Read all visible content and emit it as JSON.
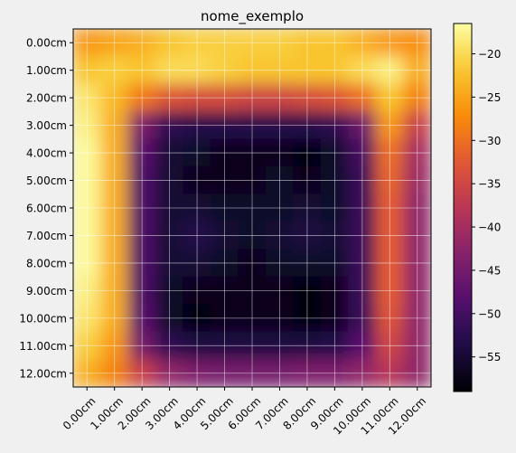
{
  "chart_data": {
    "type": "heatmap",
    "title": "nome_exemplo",
    "xlabel": "",
    "ylabel": "",
    "x_ticks": [
      "0.00cm",
      "1.00cm",
      "2.00cm",
      "3.00cm",
      "4.00cm",
      "5.00cm",
      "6.00cm",
      "7.00cm",
      "8.00cm",
      "9.00cm",
      "10.00cm",
      "11.00cm",
      "12.00cm"
    ],
    "y_ticks": [
      "0.00cm",
      "1.00cm",
      "2.00cm",
      "3.00cm",
      "4.00cm",
      "5.00cm",
      "6.00cm",
      "7.00cm",
      "8.00cm",
      "9.00cm",
      "10.00cm",
      "11.00cm",
      "12.00cm"
    ],
    "grid": true,
    "colormap": "inferno",
    "colorbar": {
      "min": -59,
      "max": -16.5,
      "ticks": [
        -20,
        -25,
        -30,
        -35,
        -40,
        -45,
        -50,
        -55
      ]
    },
    "z": [
      [
        -26,
        -25,
        -24,
        -22,
        -21,
        -21,
        -21,
        -21,
        -22,
        -22,
        -24,
        -26,
        -27
      ],
      [
        -22,
        -21,
        -22,
        -20,
        -20,
        -21,
        -22,
        -22,
        -22,
        -22,
        -20,
        -18,
        -24
      ],
      [
        -19,
        -23,
        -29,
        -33,
        -34,
        -34,
        -35,
        -35,
        -34,
        -33,
        -30,
        -22,
        -28
      ],
      [
        -18,
        -24,
        -44,
        -52,
        -53,
        -53,
        -53,
        -53,
        -53,
        -52,
        -46,
        -26,
        -36
      ],
      [
        -17,
        -24,
        -48,
        -55,
        -56,
        -57,
        -57,
        -57,
        -58,
        -56,
        -50,
        -30,
        -40
      ],
      [
        -17,
        -24,
        -49,
        -55,
        -57,
        -57,
        -57,
        -56,
        -57,
        -56,
        -51,
        -31,
        -41
      ],
      [
        -17,
        -24,
        -49,
        -55,
        -55,
        -56,
        -56,
        -56,
        -55,
        -56,
        -51,
        -32,
        -42
      ],
      [
        -17,
        -24,
        -49,
        -55,
        -53,
        -55,
        -56,
        -55,
        -54,
        -55,
        -51,
        -32,
        -42
      ],
      [
        -17,
        -24,
        -49,
        -55,
        -55,
        -56,
        -57,
        -56,
        -56,
        -56,
        -51,
        -32,
        -42
      ],
      [
        -18,
        -24,
        -49,
        -56,
        -57,
        -57,
        -57,
        -57,
        -58,
        -57,
        -51,
        -32,
        -42
      ],
      [
        -19,
        -24,
        -48,
        -56,
        -58,
        -57,
        -57,
        -57,
        -58,
        -57,
        -51,
        -33,
        -42
      ],
      [
        -21,
        -26,
        -45,
        -52,
        -54,
        -54,
        -54,
        -54,
        -54,
        -53,
        -48,
        -35,
        -42
      ],
      [
        -24,
        -28,
        -36,
        -42,
        -44,
        -45,
        -45,
        -45,
        -44,
        -44,
        -42,
        -38,
        -42
      ]
    ]
  }
}
